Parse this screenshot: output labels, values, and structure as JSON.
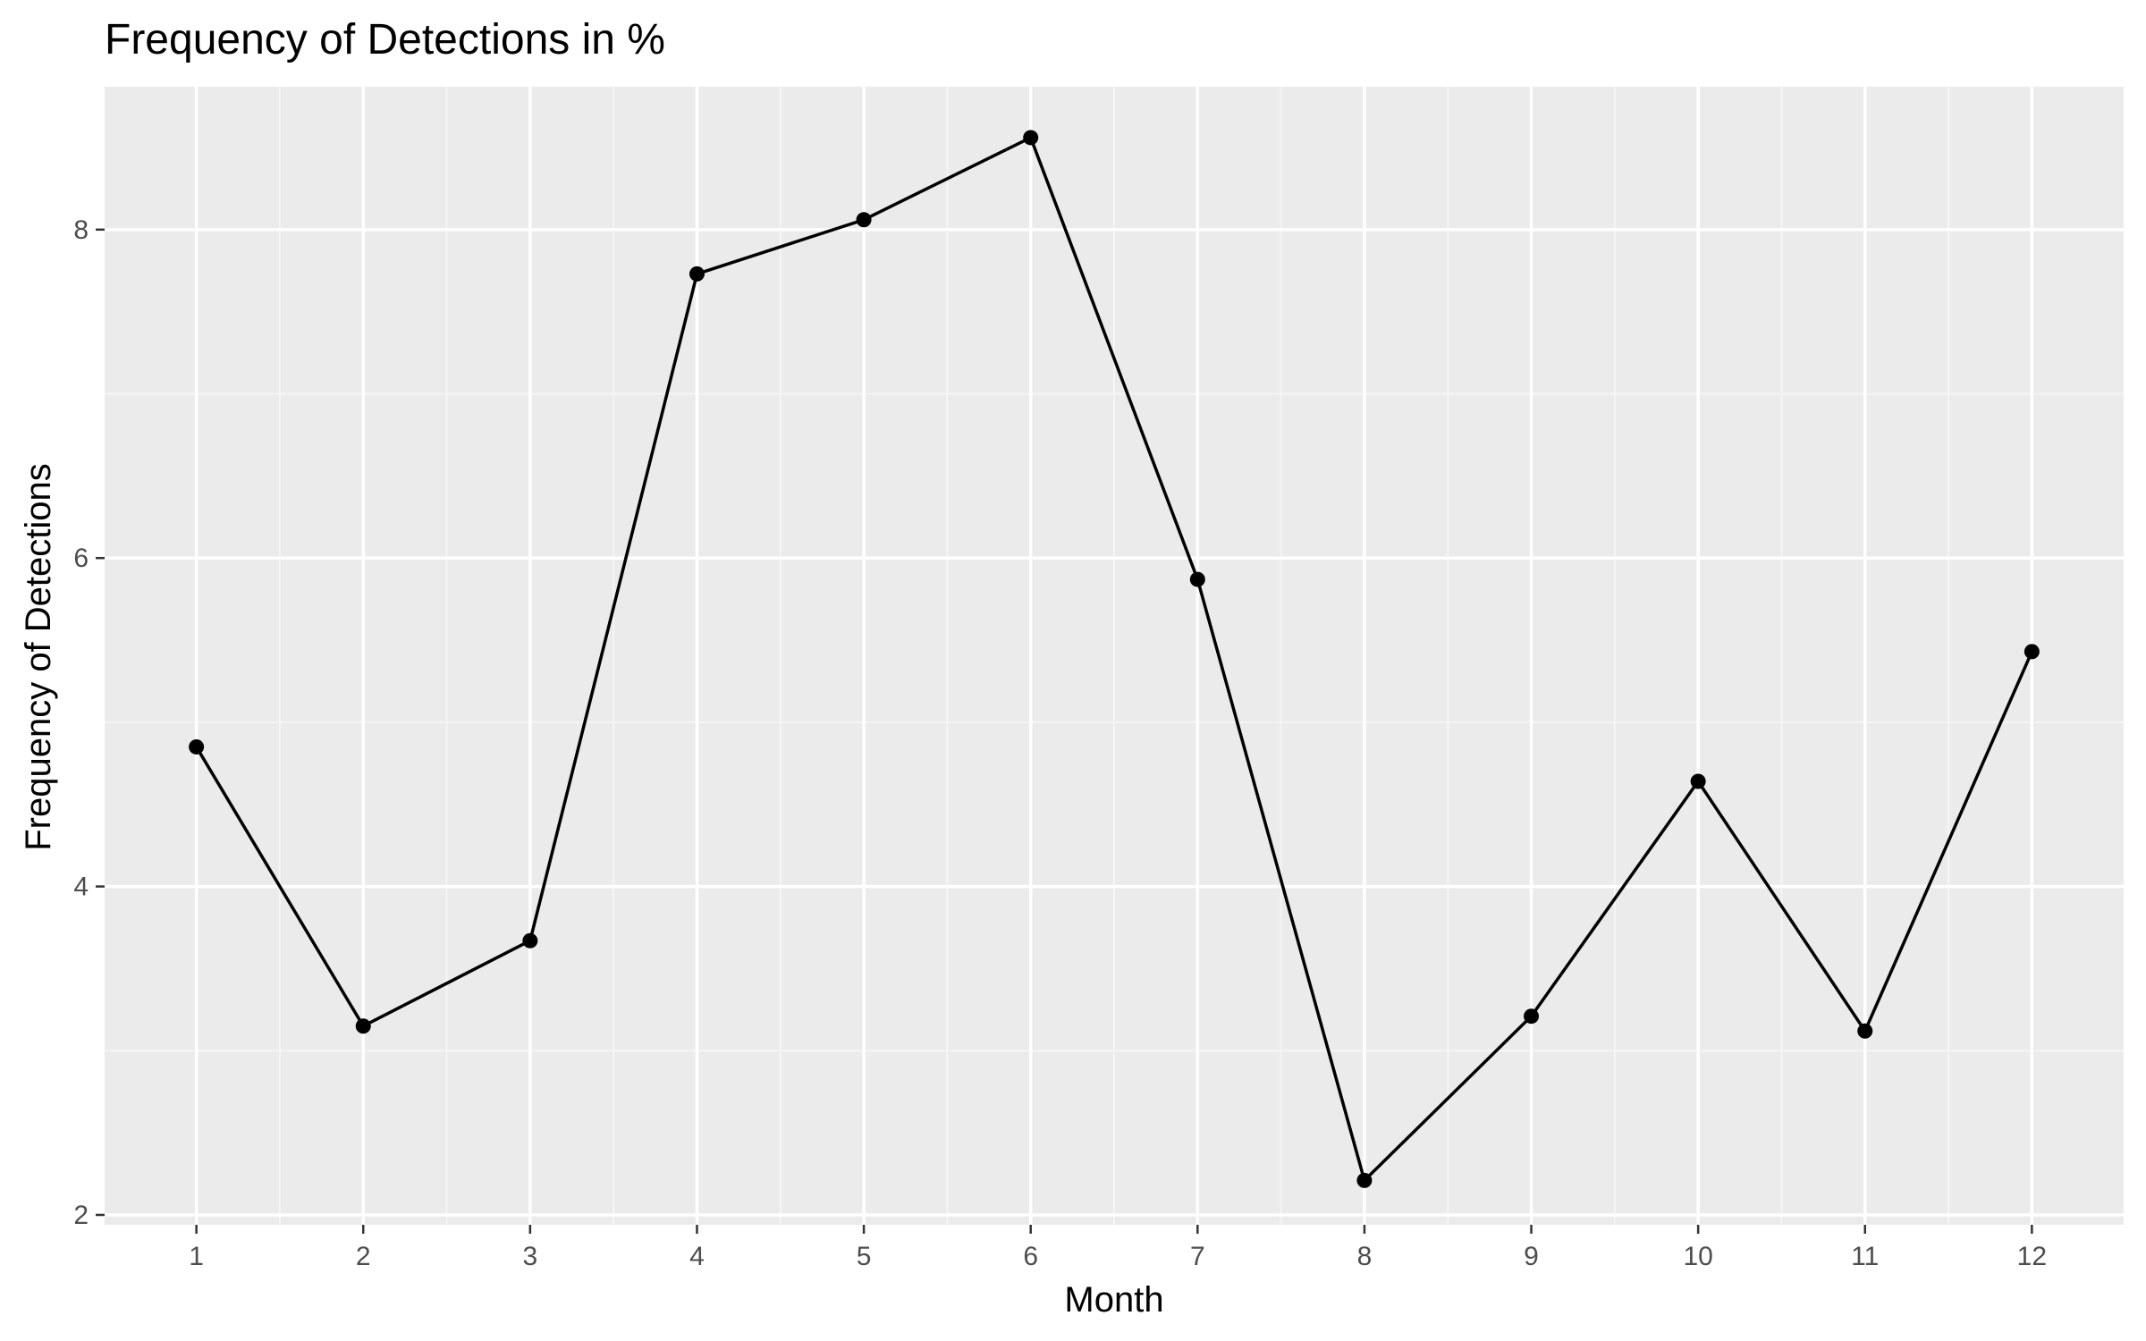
{
  "chart_data": {
    "type": "line",
    "title": "Frequency of Detections in %",
    "xlabel": "Month",
    "ylabel": "Frequency of Detections",
    "x": [
      1,
      2,
      3,
      4,
      5,
      6,
      7,
      8,
      9,
      10,
      11,
      12
    ],
    "x_tick_labels": [
      "1",
      "2",
      "3",
      "4",
      "5",
      "6",
      "7",
      "8",
      "9",
      "10",
      "11",
      "12"
    ],
    "y_ticks": [
      2,
      4,
      6,
      8
    ],
    "y_tick_labels": [
      "2",
      "4",
      "6",
      "8"
    ],
    "xlim": [
      0.45,
      12.55
    ],
    "ylim": [
      1.94,
      8.87
    ],
    "grid": true,
    "legend": "none",
    "series": [
      {
        "values": [
          4.85,
          3.15,
          3.67,
          7.73,
          8.06,
          8.56,
          5.87,
          2.21,
          3.21,
          4.64,
          3.12,
          5.43
        ]
      }
    ],
    "colors": {
      "panel_background": "#ebebeb",
      "grid_major": "#ffffff",
      "grid_minor": "#f5f5f5",
      "line": "#000000",
      "point": "#000000",
      "tick_text": "#4d4d4d",
      "axis_text": "#000000"
    }
  }
}
